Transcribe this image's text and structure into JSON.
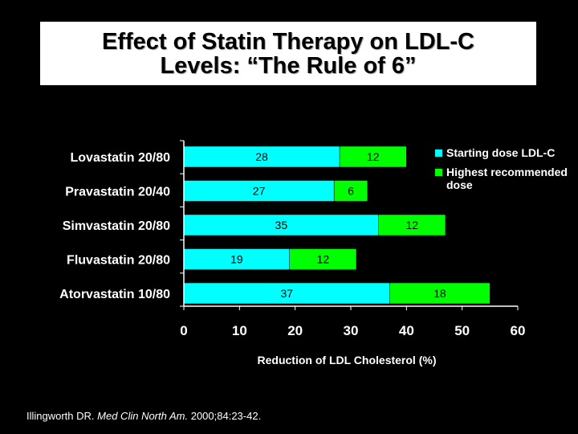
{
  "title": {
    "line1": "Effect of Statin Therapy on LDL-C",
    "line2": "Levels: “The Rule of 6”"
  },
  "colors": {
    "starting": "#00FFFF",
    "highest": "#00FF00",
    "background": "#000000"
  },
  "chart_data": {
    "type": "bar",
    "orientation": "horizontal",
    "stacked": true,
    "categories": [
      "Lovastatin 20/80",
      "Pravastatin 20/40",
      "Simvastatin 20/80",
      "Fluvastatin 20/80",
      "Atorvastatin 10/80"
    ],
    "series": [
      {
        "name": "Starting dose LDL-C",
        "values": [
          28,
          27,
          35,
          19,
          37
        ]
      },
      {
        "name": "Highest recommended dose",
        "values": [
          12,
          6,
          12,
          12,
          18
        ]
      }
    ],
    "xlabel": "Reduction of LDL Cholesterol (%)",
    "xlim": [
      0,
      60
    ],
    "xticks": [
      "0",
      "10",
      "20",
      "30",
      "40",
      "50",
      "60"
    ],
    "legend_position": "right"
  },
  "legend": {
    "items": [
      "Starting dose LDL-C",
      "Highest recommended dose"
    ]
  },
  "citation": {
    "author": "Illingworth DR.",
    "journal": "Med Clin North Am.",
    "details": "2000;84:23-42."
  }
}
